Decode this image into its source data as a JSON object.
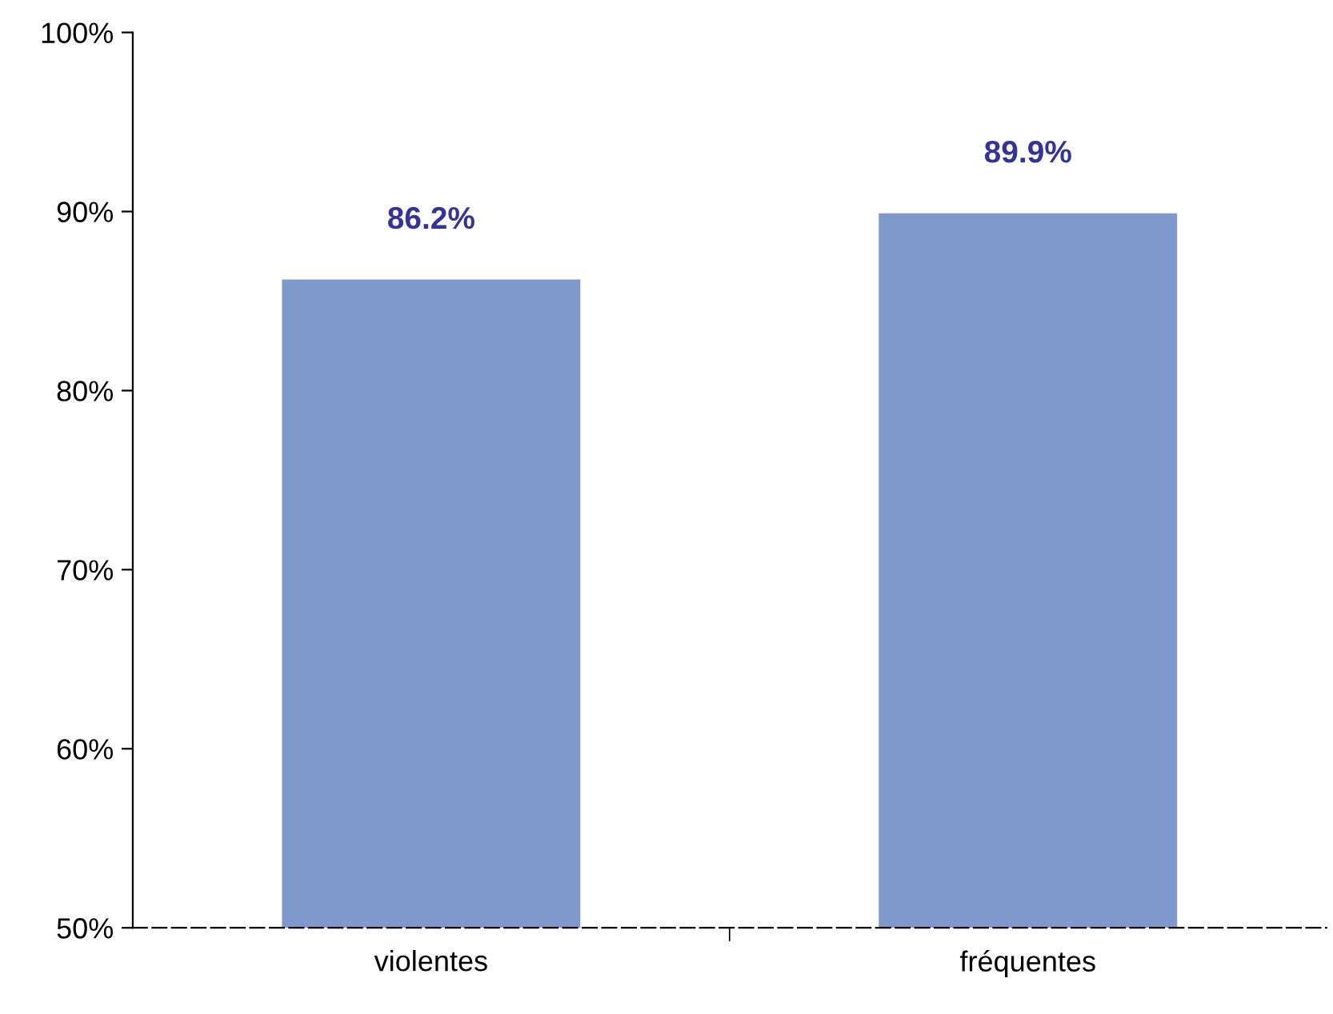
{
  "chart_data": {
    "type": "bar",
    "categories": [
      "violentes",
      "fréquentes"
    ],
    "values": [
      86.2,
      89.9
    ],
    "value_labels": [
      "86.2%",
      "89.9%"
    ],
    "color": "#8099cc",
    "ylim": [
      50,
      100
    ],
    "yticks": [
      {
        "value": 50,
        "label": "50%"
      },
      {
        "value": 60,
        "label": "60%"
      },
      {
        "value": 70,
        "label": "70%"
      },
      {
        "value": 80,
        "label": "80%"
      },
      {
        "value": 90,
        "label": "90%"
      },
      {
        "value": 100,
        "label": "100%"
      }
    ],
    "grid": false,
    "legend": false
  }
}
